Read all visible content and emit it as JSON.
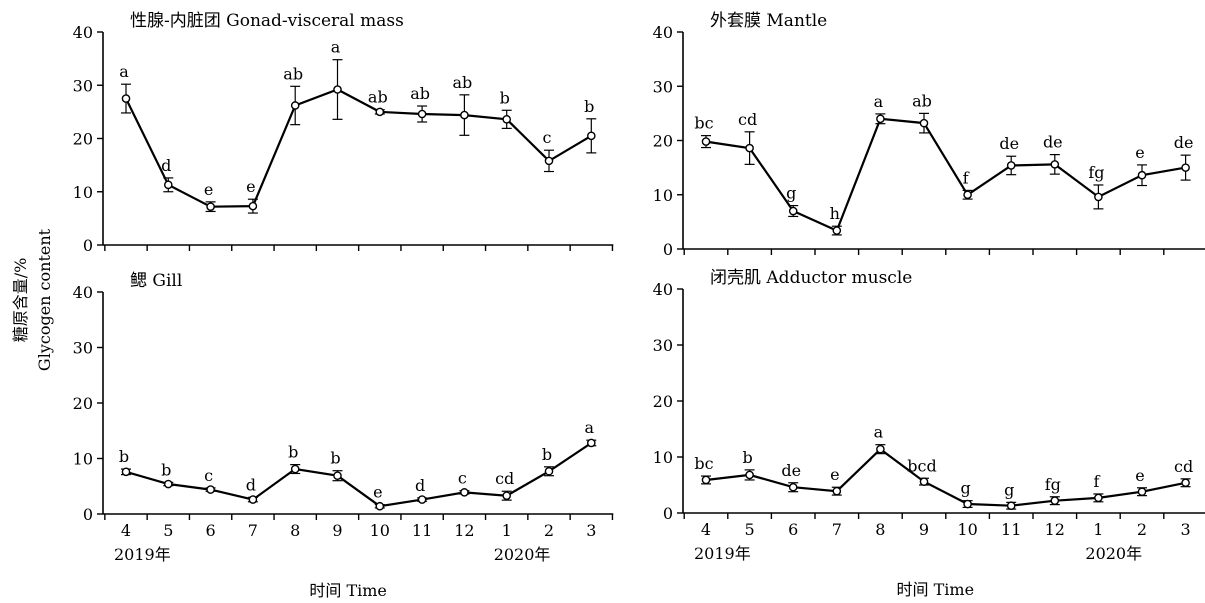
{
  "chart_data": [
    {
      "type": "line",
      "title": "性腺-内脏团 Gonad-visceral mass",
      "categories": [
        "4",
        "5",
        "6",
        "7",
        "8",
        "9",
        "10",
        "11",
        "12",
        "1",
        "2",
        "3"
      ],
      "ylim": [
        0,
        40
      ],
      "yticks": [
        0,
        10,
        20,
        30,
        40
      ],
      "show_xticklabels": false,
      "series": [
        {
          "values": [
            27.5,
            11.3,
            7.2,
            7.3,
            26.2,
            29.2,
            25.0,
            24.6,
            24.4,
            23.6,
            15.8,
            20.5
          ],
          "errors": [
            2.7,
            1.3,
            0.9,
            1.3,
            3.6,
            5.6,
            0.4,
            1.5,
            3.8,
            1.7,
            2.0,
            3.2
          ],
          "labels": [
            "a",
            "d",
            "e",
            "e",
            "ab",
            "a",
            "ab",
            "ab",
            "ab",
            "b",
            "c",
            "b"
          ]
        }
      ]
    },
    {
      "type": "line",
      "title": "外套膜 Mantle",
      "categories": [
        "4",
        "5",
        "6",
        "7",
        "8",
        "9",
        "10",
        "11",
        "12",
        "1",
        "2",
        "3"
      ],
      "ylim": [
        0,
        40
      ],
      "yticks": [
        0,
        10,
        20,
        30,
        40
      ],
      "show_xticklabels": false,
      "series": [
        {
          "values": [
            19.8,
            18.6,
            7.0,
            3.4,
            24.0,
            23.2,
            10.0,
            15.4,
            15.6,
            9.6,
            13.6,
            15.0
          ],
          "errors": [
            1.1,
            3.0,
            1.0,
            0.8,
            0.9,
            1.8,
            0.8,
            1.7,
            1.8,
            2.2,
            1.9,
            2.3
          ],
          "labels": [
            "bc",
            "cd",
            "g",
            "h",
            "a",
            "ab",
            "f",
            "de",
            "de",
            "fg",
            "e",
            "de"
          ]
        }
      ]
    },
    {
      "type": "line",
      "title": "鳃 Gill",
      "categories": [
        "4",
        "5",
        "6",
        "7",
        "8",
        "9",
        "10",
        "11",
        "12",
        "1",
        "2",
        "3"
      ],
      "ylim": [
        0,
        40
      ],
      "yticks": [
        0,
        10,
        20,
        30,
        40
      ],
      "show_xticklabels": true,
      "year_labels": [
        "2019年",
        "2020年"
      ],
      "xlabel": "时间 Time",
      "series": [
        {
          "values": [
            7.6,
            5.4,
            4.4,
            2.6,
            8.1,
            6.9,
            1.4,
            2.6,
            3.9,
            3.3,
            7.7,
            12.8
          ],
          "errors": [
            0.5,
            0.3,
            0.3,
            0.4,
            0.8,
            0.9,
            0.3,
            0.3,
            0.3,
            0.8,
            0.8,
            0.5
          ],
          "labels": [
            "b",
            "b",
            "c",
            "d",
            "b",
            "b",
            "e",
            "d",
            "c",
            "cd",
            "b",
            "a"
          ]
        }
      ]
    },
    {
      "type": "line",
      "title": "闭壳肌 Adductor muscle",
      "categories": [
        "4",
        "5",
        "6",
        "7",
        "8",
        "9",
        "10",
        "11",
        "12",
        "1",
        "2",
        "3"
      ],
      "ylim": [
        0,
        40
      ],
      "yticks": [
        0,
        10,
        20,
        30,
        40
      ],
      "show_xticklabels": true,
      "year_labels": [
        "2019年",
        "2020年"
      ],
      "xlabel": "时间 Time",
      "series": [
        {
          "values": [
            5.9,
            6.8,
            4.6,
            3.9,
            11.4,
            5.6,
            1.6,
            1.3,
            2.2,
            2.7,
            3.8,
            5.4
          ],
          "errors": [
            0.7,
            0.9,
            0.8,
            0.7,
            0.8,
            0.6,
            0.6,
            0.6,
            0.7,
            0.7,
            0.7,
            0.7
          ],
          "labels": [
            "bc",
            "b",
            "de",
            "e",
            "a",
            "bcd",
            "g",
            "g",
            "fg",
            "f",
            "e",
            "cd"
          ]
        }
      ]
    }
  ],
  "ylabel": {
    "line1": "糖原含量/%",
    "line2": "Glycogen content"
  }
}
